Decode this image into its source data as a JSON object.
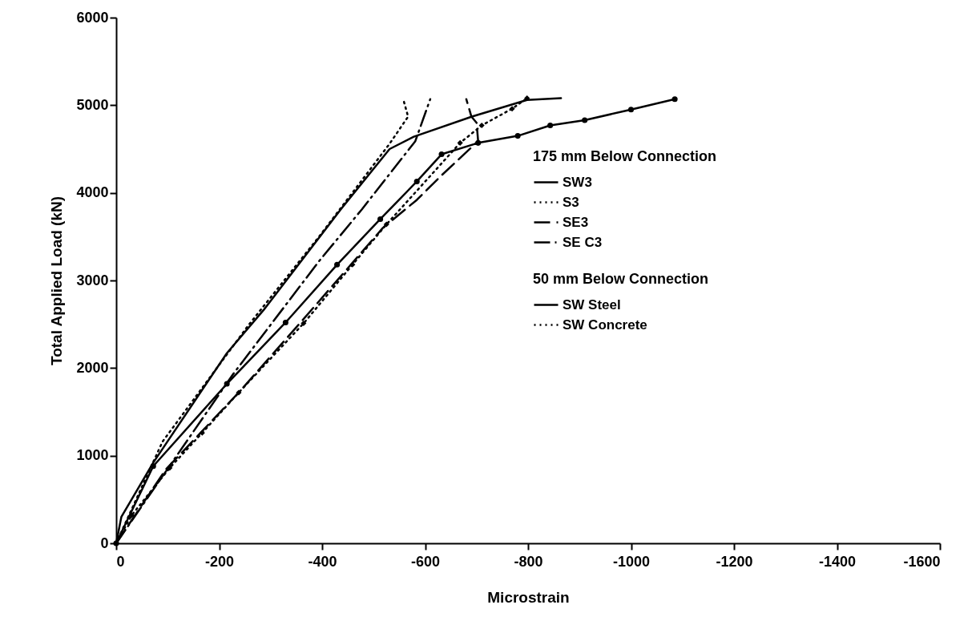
{
  "chart_data": {
    "type": "line",
    "xlabel": "Microstrain",
    "ylabel": "Total Applied Load (kN)",
    "xlim": [
      0,
      -1600
    ],
    "xticks": [
      0,
      -200,
      -400,
      -600,
      -800,
      -1000,
      -1200,
      -1400,
      -1600
    ],
    "ylim": [
      0,
      6000
    ],
    "yticks": [
      0,
      1000,
      2000,
      3000,
      4000,
      5000,
      6000
    ],
    "grid": false,
    "legend": "right",
    "legend_title": [
      "175 mm Below Connection",
      "50 mm Below Connection"
    ],
    "series": [
      {
        "name": "SW3",
        "color": "#000000",
        "line_style": "solid",
        "marker": "none",
        "x": [
          0,
          -10,
          -72,
          -215,
          -286,
          -436,
          -531,
          -578,
          -691,
          -798,
          -864
        ],
        "values": [
          0,
          300,
          920,
          2170,
          2660,
          3810,
          4500,
          4640,
          4870,
          5060,
          5080
        ]
      },
      {
        "name": "S3",
        "color": "#000000",
        "line_style": "dotted",
        "marker": "none",
        "x": [
          0,
          -90,
          -257,
          -394,
          -531,
          -567,
          -557
        ],
        "values": [
          0,
          1160,
          2490,
          3500,
          4560,
          4870,
          5080
        ]
      },
      {
        "name": "SE3",
        "color": "#000000",
        "line_style": "dashed",
        "marker": "none",
        "x": [
          0,
          -96,
          -238,
          -358,
          -518,
          -584,
          -632,
          -703,
          -700,
          -690,
          -680
        ],
        "values": [
          0,
          840,
          1720,
          2520,
          3600,
          3920,
          4200,
          4590,
          4800,
          4870,
          5070
        ]
      },
      {
        "name": "SE C3",
        "color": "#000000",
        "line_style": "dashdot",
        "marker": "none",
        "x": [
          0,
          -227,
          -394,
          -477,
          -581,
          -610
        ],
        "values": [
          0,
          1930,
          3220,
          3810,
          4590,
          5070
        ]
      },
      {
        "name": "SW Steel",
        "color": "#000000",
        "line_style": "solid",
        "marker": "circle",
        "x": [
          0,
          -72,
          -215,
          -329,
          -429,
          -513,
          -584,
          -632,
          -703,
          -780,
          -843,
          -910,
          -1000,
          -1085
        ],
        "values": [
          0,
          880,
          1820,
          2520,
          3180,
          3700,
          4130,
          4440,
          4570,
          4650,
          4770,
          4830,
          4950,
          5070
        ]
      },
      {
        "name": "SW Concrete",
        "color": "#000000",
        "line_style": "dotted",
        "marker": "diamond",
        "x": [
          0,
          -30,
          -104,
          -167,
          -238,
          -364,
          -459,
          -525,
          -668,
          -710,
          -769,
          -798
        ],
        "values": [
          0,
          320,
          860,
          1260,
          1720,
          2510,
          3180,
          3640,
          4570,
          4770,
          4960,
          5080
        ]
      }
    ]
  }
}
